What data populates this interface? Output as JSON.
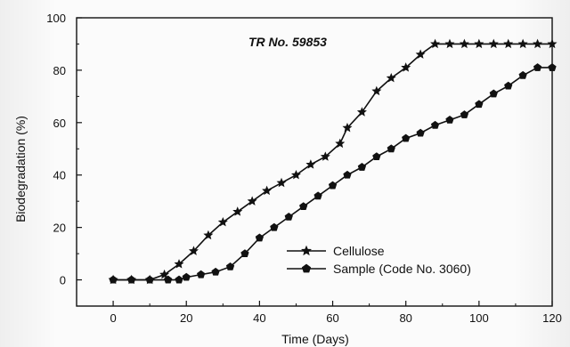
{
  "chart_data": {
    "type": "line",
    "title": "TR No. 59853",
    "xlabel": "Time (Days)",
    "ylabel": "Biodegradation (%)",
    "xlim": [
      -10,
      120
    ],
    "ylim": [
      -10,
      100
    ],
    "x_ticks": [
      "0",
      "20",
      "40",
      "60",
      "80",
      "100",
      "120"
    ],
    "y_ticks": [
      "0",
      "20",
      "40",
      "60",
      "80",
      "100"
    ],
    "grid": false,
    "legend_position": "bottom-right",
    "series": [
      {
        "name": "Cellulose",
        "marker": "star",
        "color": "#111111",
        "points": [
          [
            0,
            0
          ],
          [
            5,
            0
          ],
          [
            10,
            0
          ],
          [
            14,
            2
          ],
          [
            18,
            6
          ],
          [
            22,
            11
          ],
          [
            26,
            17
          ],
          [
            30,
            22
          ],
          [
            34,
            26
          ],
          [
            38,
            30
          ],
          [
            42,
            34
          ],
          [
            46,
            37
          ],
          [
            50,
            40
          ],
          [
            54,
            44
          ],
          [
            58,
            47
          ],
          [
            62,
            52
          ],
          [
            64,
            58
          ],
          [
            68,
            64
          ],
          [
            72,
            72
          ],
          [
            76,
            77
          ],
          [
            80,
            81
          ],
          [
            84,
            86
          ],
          [
            88,
            90
          ],
          [
            92,
            90
          ],
          [
            96,
            90
          ],
          [
            100,
            90
          ],
          [
            104,
            90
          ],
          [
            108,
            90
          ],
          [
            112,
            90
          ],
          [
            116,
            90
          ],
          [
            120,
            90
          ]
        ]
      },
      {
        "name": "Sample (Code No. 3060)",
        "marker": "pentagon",
        "color": "#111111",
        "points": [
          [
            0,
            0
          ],
          [
            5,
            0
          ],
          [
            10,
            0
          ],
          [
            15,
            0
          ],
          [
            18,
            0
          ],
          [
            20,
            1
          ],
          [
            24,
            2
          ],
          [
            28,
            3
          ],
          [
            32,
            5
          ],
          [
            36,
            10
          ],
          [
            40,
            16
          ],
          [
            44,
            20
          ],
          [
            48,
            24
          ],
          [
            52,
            28
          ],
          [
            56,
            32
          ],
          [
            60,
            36
          ],
          [
            64,
            40
          ],
          [
            68,
            43
          ],
          [
            72,
            47
          ],
          [
            76,
            50
          ],
          [
            80,
            54
          ],
          [
            84,
            56
          ],
          [
            88,
            59
          ],
          [
            92,
            61
          ],
          [
            96,
            63
          ],
          [
            100,
            67
          ],
          [
            104,
            71
          ],
          [
            108,
            74
          ],
          [
            112,
            78
          ],
          [
            116,
            81
          ],
          [
            120,
            81
          ]
        ]
      }
    ]
  }
}
